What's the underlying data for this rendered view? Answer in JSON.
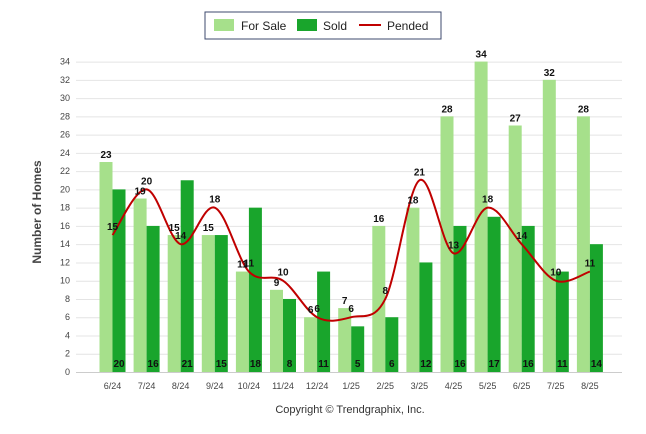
{
  "chart_data": {
    "type": "bar",
    "categories": [
      "6/24",
      "7/24",
      "8/24",
      "9/24",
      "10/24",
      "11/24",
      "12/24",
      "1/25",
      "2/25",
      "3/25",
      "4/25",
      "5/25",
      "6/25",
      "7/25",
      "8/25"
    ],
    "series": [
      {
        "name": "For Sale",
        "kind": "bar",
        "color": "#a6e08b",
        "values": [
          23,
          19,
          15,
          15,
          11,
          9,
          6,
          7,
          16,
          18,
          28,
          34,
          27,
          32,
          28
        ]
      },
      {
        "name": "Sold",
        "kind": "bar",
        "color": "#19a52c",
        "values": [
          20,
          16,
          21,
          15,
          18,
          8,
          11,
          5,
          6,
          12,
          16,
          17,
          16,
          11,
          14
        ]
      },
      {
        "name": "Pended",
        "kind": "line",
        "color": "#c00000",
        "values": [
          15,
          20,
          14,
          18,
          11,
          10,
          6,
          6,
          8,
          21,
          13,
          18,
          14,
          10,
          11
        ]
      }
    ],
    "ylabel": "Number of Homes",
    "yticks": [
      0,
      2,
      4,
      6,
      8,
      10,
      12,
      14,
      16,
      18,
      20,
      22,
      24,
      26,
      28,
      30,
      32,
      34
    ],
    "ylim": [
      0,
      35
    ],
    "grid": true,
    "legend_position": "top-center",
    "footer": "Copyright © Trendgraphix, Inc."
  }
}
